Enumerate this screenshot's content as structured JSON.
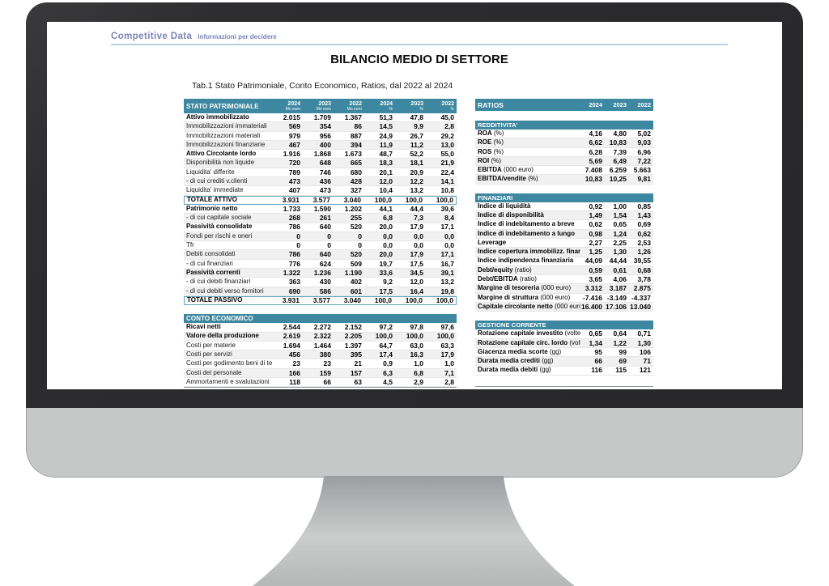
{
  "header": {
    "brand": "Competitive Data",
    "tagline": "informazioni per decidere",
    "title": "BILANCIO MEDIO DI SETTORE",
    "caption": "Tab.1 Stato Patrimoniale, Conto Economico, Ratios, dal 2022 al 2024"
  },
  "colors": {
    "accent_teal": "#3d87a1",
    "logo_blue": "#7a84b5",
    "divider_blue": "#b9cfe1",
    "bezel_dark": "#2d2d2f",
    "chin_gray": "#c6c8c7",
    "stripe_gray": "#f1f1f1",
    "total_border": "#5fa5bf"
  },
  "balance_table": {
    "title": "STATO PATRIMONIALE",
    "columns": [
      {
        "year": "2024",
        "unit": "Mn euro"
      },
      {
        "year": "2023",
        "unit": "Mn euro"
      },
      {
        "year": "2022",
        "unit": "Mn euro"
      },
      {
        "year": "2024",
        "unit": "%"
      },
      {
        "year": "2023",
        "unit": "%"
      },
      {
        "year": "2022",
        "unit": "%"
      }
    ],
    "rows": [
      {
        "label": "Attivo immobilizzato",
        "style": "bold",
        "values": [
          "2.015",
          "1.709",
          "1.367",
          "51,3",
          "47,8",
          "45,0"
        ]
      },
      {
        "label": "Immobilizzazioni immateriali",
        "style": "normal",
        "values": [
          "569",
          "354",
          "86",
          "14,5",
          "9,9",
          "2,8"
        ]
      },
      {
        "label": "Immobilizzazioni materiali",
        "style": "normal",
        "values": [
          "979",
          "956",
          "887",
          "24,9",
          "26,7",
          "29,2"
        ]
      },
      {
        "label": "Immobilizzazioni finanziarie",
        "style": "normal",
        "values": [
          "467",
          "400",
          "394",
          "11,9",
          "11,2",
          "13,0"
        ]
      },
      {
        "label": "Attivo Circolante  lordo",
        "style": "bold",
        "values": [
          "1.916",
          "1.868",
          "1.673",
          "48,7",
          "52,2",
          "55,0"
        ]
      },
      {
        "label": "Disponibilità non liquide",
        "style": "normal",
        "values": [
          "720",
          "648",
          "665",
          "18,3",
          "18,1",
          "21,9"
        ]
      },
      {
        "label": "Liquidita'  differite",
        "style": "normal",
        "values": [
          "789",
          "746",
          "680",
          "20,1",
          "20,9",
          "22,4"
        ]
      },
      {
        "label": " - di cui crediti v.clienti",
        "style": "normal",
        "values": [
          "473",
          "436",
          "428",
          "12,0",
          "12,2",
          "14,1"
        ]
      },
      {
        "label": "Liquidita'  immediate",
        "style": "normal",
        "values": [
          "407",
          "473",
          "327",
          "10,4",
          "13,2",
          "10,8"
        ]
      },
      {
        "label": "TOTALE ATTIVO",
        "style": "total",
        "values": [
          "3.931",
          "3.577",
          "3.040",
          "100,0",
          "100,0",
          "100,0"
        ]
      },
      {
        "label": "Patrimonio netto",
        "style": "bold",
        "values": [
          "1.733",
          "1.590",
          "1.202",
          "44,1",
          "44,4",
          "39,6"
        ]
      },
      {
        "label": " - di cui capitale sociale",
        "style": "normal",
        "values": [
          "268",
          "261",
          "255",
          "6,8",
          "7,3",
          "8,4"
        ]
      },
      {
        "label": "Passività consolidate",
        "style": "bold",
        "values": [
          "786",
          "640",
          "520",
          "20,0",
          "17,9",
          "17,1"
        ]
      },
      {
        "label": "Fondi per rischi e oneri",
        "style": "normal",
        "values": [
          "0",
          "0",
          "0",
          "0,0",
          "0,0",
          "0,0"
        ]
      },
      {
        "label": "Tfr",
        "style": "normal",
        "values": [
          "0",
          "0",
          "0",
          "0,0",
          "0,0",
          "0,0"
        ]
      },
      {
        "label": "Debiti consolidati",
        "style": "normal",
        "values": [
          "786",
          "640",
          "520",
          "20,0",
          "17,9",
          "17,1"
        ]
      },
      {
        "label": "- di cui finanziari",
        "style": "normal",
        "values": [
          "776",
          "624",
          "509",
          "19,7",
          "17,5",
          "16,7"
        ]
      },
      {
        "label": "Passività correnti",
        "style": "bold",
        "values": [
          "1.322",
          "1.236",
          "1.190",
          "33,6",
          "34,5",
          "39,1"
        ]
      },
      {
        "label": "- di cui debiti finanziari",
        "style": "normal",
        "values": [
          "363",
          "430",
          "402",
          "9,2",
          "12,0",
          "13,2"
        ]
      },
      {
        "label": "- di cui debiti verso fornitori",
        "style": "normal",
        "values": [
          "690",
          "586",
          "601",
          "17,5",
          "16,4",
          "19,8"
        ]
      },
      {
        "label": "TOTALE PASSIVO",
        "style": "total",
        "values": [
          "3.931",
          "3.577",
          "3.040",
          "100,0",
          "100,0",
          "100,0"
        ]
      }
    ]
  },
  "income_table": {
    "title": "CONTO ECONOMICO",
    "rows": [
      {
        "label": "Ricavi netti",
        "style": "bold",
        "values": [
          "2.544",
          "2.272",
          "2.152",
          "97,2",
          "97,8",
          "97,6"
        ]
      },
      {
        "label": "Valore della produzione",
        "style": "bold",
        "values": [
          "2.619",
          "2.322",
          "2.205",
          "100,0",
          "100,0",
          "100,0"
        ]
      },
      {
        "label": "Costi per materie",
        "style": "normal",
        "values": [
          "1.694",
          "1.464",
          "1.397",
          "64,7",
          "63,0",
          "63,3"
        ]
      },
      {
        "label": "Costi per servizi",
        "style": "normal",
        "values": [
          "456",
          "380",
          "395",
          "17,4",
          "16,3",
          "17,9"
        ]
      },
      {
        "label": "Costi per godimento beni di terzi",
        "style": "normal",
        "values": [
          "23",
          "23",
          "21",
          "0,9",
          "1,0",
          "1,0"
        ]
      },
      {
        "label": "Costi del personale",
        "style": "normal",
        "values": [
          "166",
          "159",
          "157",
          "6,3",
          "6,8",
          "7,1"
        ]
      },
      {
        "label": "Ammortamenti e svalutazioni",
        "style": "normal",
        "values": [
          "118",
          "66",
          "63",
          "4,5",
          "2,9",
          "2,8"
        ]
      }
    ]
  },
  "ratios_table": {
    "title": "RATIOS",
    "years": [
      "2024",
      "2023",
      "2022"
    ],
    "sections": [
      {
        "title": "REDDITIVITA'",
        "rows": [
          {
            "label": "ROA",
            "suffix": "(%)",
            "values": [
              "4,16",
              "4,80",
              "5,02"
            ]
          },
          {
            "label": "ROE",
            "suffix": "(%)",
            "values": [
              "6,62",
              "10,83",
              "9,03"
            ]
          },
          {
            "label": "ROS",
            "suffix": "(%)",
            "values": [
              "6,28",
              "7,39",
              "6,96"
            ]
          },
          {
            "label": "ROI",
            "suffix": "(%)",
            "values": [
              "5,69",
              "6,49",
              "7,22"
            ]
          },
          {
            "label": "EBITDA",
            "suffix": "(000 euro)",
            "values": [
              "7.408",
              "6.259",
              "5.663"
            ]
          },
          {
            "label": "EBITDA/vendite",
            "suffix": "(%)",
            "values": [
              "10,83",
              "10,25",
              "9,81"
            ]
          }
        ]
      },
      {
        "title": "FINANZIARI",
        "rows": [
          {
            "label": "Indice di liquidità",
            "suffix": "",
            "values": [
              "0,92",
              "1,00",
              "0,85"
            ]
          },
          {
            "label": "Indice di disponibilità",
            "suffix": "",
            "values": [
              "1,49",
              "1,54",
              "1,43"
            ]
          },
          {
            "label": "Indice di indebitamento a breve",
            "suffix": "",
            "values": [
              "0,62",
              "0,65",
              "0,69"
            ]
          },
          {
            "label": "Indice di indebitamento a lungo",
            "suffix": "",
            "values": [
              "0,98",
              "1,24",
              "0,62"
            ]
          },
          {
            "label": "Leverage",
            "suffix": "",
            "values": [
              "2,27",
              "2,25",
              "2,53"
            ]
          },
          {
            "label": "Indice copertura immobilizz. finanziarie",
            "suffix": "",
            "values": [
              "1,25",
              "1,30",
              "1,26"
            ]
          },
          {
            "label": "Indice indipendenza finanziaria",
            "suffix": "",
            "values": [
              "44,09",
              "44,44",
              "39,55"
            ]
          },
          {
            "label": "Debt/equity",
            "suffix": "(ratio)",
            "values": [
              "0,59",
              "0,61",
              "0,68"
            ]
          },
          {
            "label": "Debt/EBITDA",
            "suffix": "(ratio)",
            "values": [
              "3,65",
              "4,06",
              "3,78"
            ]
          },
          {
            "label": "Margine di tesoreria",
            "suffix": "(000 euro)",
            "values": [
              "3.312",
              "3.187",
              "2.875"
            ]
          },
          {
            "label": "Margine di struttura",
            "suffix": "(000 euro)",
            "values": [
              "-7.416",
              "-3.149",
              "-4.337"
            ]
          },
          {
            "label": "Capitale circolante netto",
            "suffix": "(000 euro)",
            "values": [
              "16.400",
              "17.106",
              "13.040"
            ]
          }
        ]
      },
      {
        "title": "GESTIONE CORRENTE",
        "rows": [
          {
            "label": "Rotazione capitale investito",
            "suffix": "(volte)",
            "values": [
              "0,65",
              "0,64",
              "0,71"
            ]
          },
          {
            "label": "Rotazione capitale circ. lordo",
            "suffix": "(volte)",
            "values": [
              "1,34",
              "1,22",
              "1,30"
            ]
          },
          {
            "label": "Giacenza media scorte",
            "suffix": "(gg)",
            "values": [
              "95",
              "99",
              "106"
            ]
          },
          {
            "label": "Durata media crediti",
            "suffix": "(gg)",
            "values": [
              "66",
              "69",
              "71"
            ]
          },
          {
            "label": "Durata media debiti",
            "suffix": "(gg)",
            "values": [
              "116",
              "115",
              "121"
            ]
          }
        ]
      }
    ]
  }
}
